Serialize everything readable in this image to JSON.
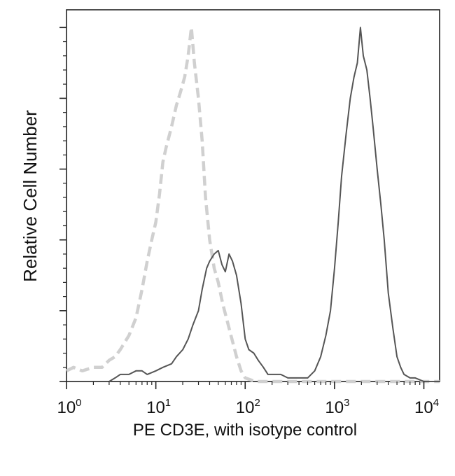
{
  "chart_data": {
    "type": "line",
    "xlabel": "PE CD3E, with isotype control",
    "ylabel": "Relative Cell Number",
    "x_scale": "log",
    "xlim": [
      1,
      15000
    ],
    "ylim": [
      0,
      1.05
    ],
    "x_ticks": [
      {
        "value": 1,
        "base": "10",
        "exp": "0"
      },
      {
        "value": 10,
        "base": "10",
        "exp": "1"
      },
      {
        "value": 100,
        "base": "10",
        "exp": "2"
      },
      {
        "value": 1000,
        "base": "10",
        "exp": "3"
      },
      {
        "value": 10000,
        "base": "10",
        "exp": "4"
      }
    ],
    "grid": false,
    "series": [
      {
        "style": "dashed",
        "color": "#d0d0d0",
        "points": [
          [
            1.0,
            0.03
          ],
          [
            1.2,
            0.04
          ],
          [
            1.5,
            0.03
          ],
          [
            2.0,
            0.04
          ],
          [
            2.5,
            0.04
          ],
          [
            3.0,
            0.06
          ],
          [
            3.5,
            0.07
          ],
          [
            4.0,
            0.09
          ],
          [
            5.0,
            0.13
          ],
          [
            6.0,
            0.18
          ],
          [
            7.0,
            0.26
          ],
          [
            8.0,
            0.34
          ],
          [
            9.0,
            0.4
          ],
          [
            10.0,
            0.45
          ],
          [
            11.0,
            0.53
          ],
          [
            12.0,
            0.62
          ],
          [
            13.0,
            0.66
          ],
          [
            15.0,
            0.72
          ],
          [
            17.0,
            0.78
          ],
          [
            19.0,
            0.82
          ],
          [
            21.0,
            0.86
          ],
          [
            23.0,
            0.92
          ],
          [
            25.0,
            1.0
          ],
          [
            27.0,
            0.9
          ],
          [
            30.0,
            0.8
          ],
          [
            33.0,
            0.68
          ],
          [
            36.0,
            0.52
          ],
          [
            40.0,
            0.4
          ],
          [
            45.0,
            0.32
          ],
          [
            50.0,
            0.28
          ],
          [
            56.0,
            0.22
          ],
          [
            63.0,
            0.17
          ],
          [
            71.0,
            0.12
          ],
          [
            80.0,
            0.07
          ],
          [
            90.0,
            0.03
          ],
          [
            100.0,
            0.01
          ],
          [
            130.0,
            0.0
          ],
          [
            200.0,
            0.0
          ],
          [
            500.0,
            0.0
          ],
          [
            1000.0,
            0.0
          ],
          [
            3000.0,
            0.0
          ],
          [
            10000.0,
            0.0
          ],
          [
            15000.0,
            0.0
          ]
        ]
      },
      {
        "style": "solid",
        "color": "#555555",
        "points": [
          [
            3.0,
            0.0
          ],
          [
            3.5,
            0.01
          ],
          [
            4.0,
            0.02
          ],
          [
            5.0,
            0.02
          ],
          [
            6.0,
            0.03
          ],
          [
            7.0,
            0.03
          ],
          [
            8.0,
            0.02
          ],
          [
            10.0,
            0.03
          ],
          [
            12.0,
            0.04
          ],
          [
            15.0,
            0.05
          ],
          [
            17.0,
            0.07
          ],
          [
            20.0,
            0.09
          ],
          [
            23.0,
            0.12
          ],
          [
            26.0,
            0.16
          ],
          [
            30.0,
            0.2
          ],
          [
            33.0,
            0.26
          ],
          [
            37.0,
            0.32
          ],
          [
            40.0,
            0.34
          ],
          [
            45.0,
            0.36
          ],
          [
            50.0,
            0.37
          ],
          [
            55.0,
            0.33
          ],
          [
            60.0,
            0.31
          ],
          [
            66.0,
            0.36
          ],
          [
            72.0,
            0.34
          ],
          [
            80.0,
            0.3
          ],
          [
            90.0,
            0.22
          ],
          [
            100.0,
            0.12
          ],
          [
            110.0,
            0.09
          ],
          [
            125.0,
            0.08
          ],
          [
            140.0,
            0.06
          ],
          [
            160.0,
            0.04
          ],
          [
            180.0,
            0.02
          ],
          [
            200.0,
            0.02
          ],
          [
            250.0,
            0.02
          ],
          [
            300.0,
            0.01
          ],
          [
            400.0,
            0.01
          ],
          [
            500.0,
            0.01
          ],
          [
            600.0,
            0.03
          ],
          [
            700.0,
            0.07
          ],
          [
            800.0,
            0.13
          ],
          [
            900.0,
            0.2
          ],
          [
            1000.0,
            0.32
          ],
          [
            1100.0,
            0.45
          ],
          [
            1200.0,
            0.58
          ],
          [
            1350.0,
            0.7
          ],
          [
            1500.0,
            0.8
          ],
          [
            1650.0,
            0.86
          ],
          [
            1800.0,
            0.9
          ],
          [
            1950.0,
            1.0
          ],
          [
            2100.0,
            0.92
          ],
          [
            2300.0,
            0.88
          ],
          [
            2500.0,
            0.8
          ],
          [
            2700.0,
            0.72
          ],
          [
            3000.0,
            0.6
          ],
          [
            3300.0,
            0.5
          ],
          [
            3600.0,
            0.4
          ],
          [
            4000.0,
            0.25
          ],
          [
            4500.0,
            0.15
          ],
          [
            5000.0,
            0.07
          ],
          [
            5500.0,
            0.04
          ],
          [
            6000.0,
            0.02
          ],
          [
            7000.0,
            0.01
          ],
          [
            8000.0,
            0.01
          ],
          [
            10000.0,
            0.0
          ],
          [
            15000.0,
            0.0
          ]
        ]
      }
    ]
  }
}
